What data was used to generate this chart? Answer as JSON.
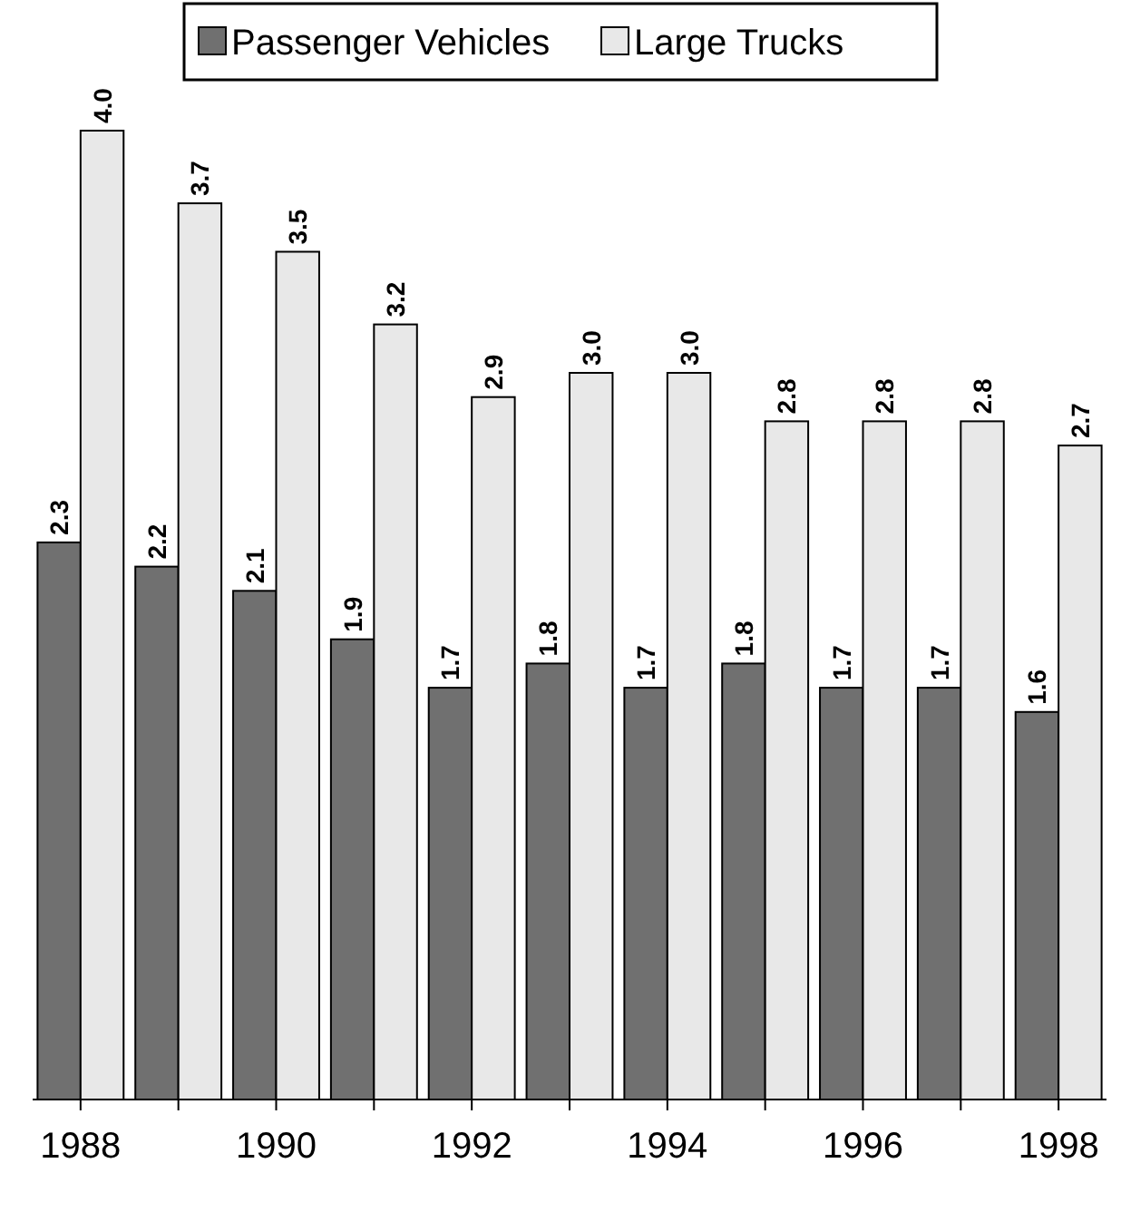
{
  "chart_data": {
    "type": "bar",
    "categories": [
      "1988",
      null,
      "1990",
      null,
      "1992",
      null,
      "1994",
      null,
      "1996",
      null,
      "1998"
    ],
    "series": [
      {
        "name": "Passenger Vehicles",
        "color": "#707070",
        "values": [
          2.3,
          2.2,
          2.1,
          1.9,
          1.7,
          1.8,
          1.7,
          1.8,
          1.7,
          1.7,
          1.6
        ],
        "value_labels": [
          "2.3",
          "2.2",
          "2.1",
          "1.9",
          "1.7",
          "1.8",
          "1.7",
          "1.8",
          "1.7",
          "1.7",
          "1.6"
        ]
      },
      {
        "name": "Large Trucks",
        "color": "#e8e8e8",
        "values": [
          4.0,
          3.7,
          3.5,
          3.2,
          2.9,
          3.0,
          3.0,
          2.8,
          2.8,
          2.8,
          2.7
        ],
        "value_labels": [
          "4.0",
          "3.7",
          "3.5",
          "3.2",
          "2.9",
          "3.0",
          "3.0",
          "2.8",
          "2.8",
          "2.8",
          "2.7"
        ]
      }
    ],
    "legend": "top"
  }
}
